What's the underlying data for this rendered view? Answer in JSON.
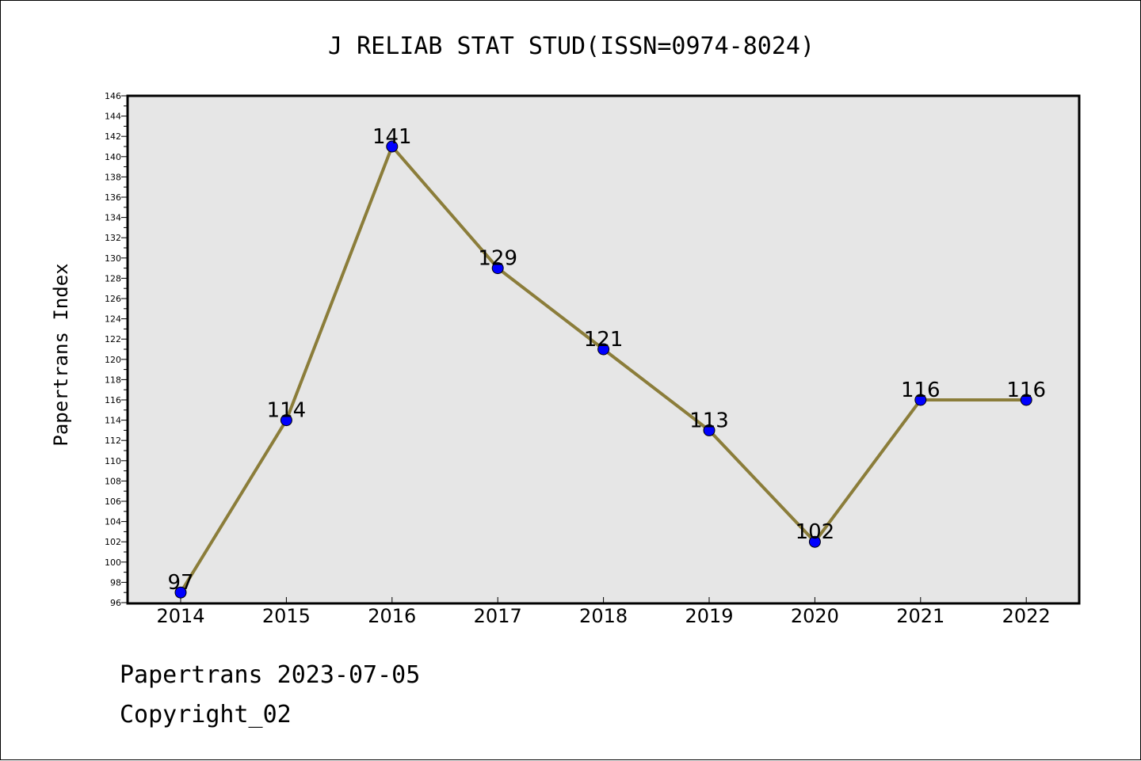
{
  "chart_data": {
    "type": "line",
    "title": "J RELIAB STAT STUD(ISSN=0974-8024)",
    "xlabel": "",
    "ylabel": "Papertrans Index",
    "categories": [
      "2014",
      "2015",
      "2016",
      "2017",
      "2018",
      "2019",
      "2020",
      "2021",
      "2022"
    ],
    "values": [
      97,
      114,
      141,
      129,
      121,
      113,
      102,
      116,
      116
    ],
    "data_labels": [
      "97",
      "114",
      "141",
      "129",
      "121",
      "113",
      "102",
      "116",
      "116"
    ],
    "ylim": [
      96,
      146
    ],
    "y_ticks": [
      "96",
      "98",
      "100",
      "102",
      "104",
      "106",
      "108",
      "110",
      "112",
      "114",
      "116",
      "118",
      "120",
      "122",
      "124",
      "126",
      "128",
      "130",
      "132",
      "134",
      "136",
      "138",
      "140",
      "142",
      "144",
      "146"
    ],
    "grid": false,
    "legend": "none",
    "colors": {
      "line": "#8B7D3A",
      "marker": "#0000FF",
      "plot_background": "#E6E6E6"
    }
  },
  "footer": {
    "line1": "Papertrans 2023-07-05",
    "line2": "Copyright_02"
  }
}
